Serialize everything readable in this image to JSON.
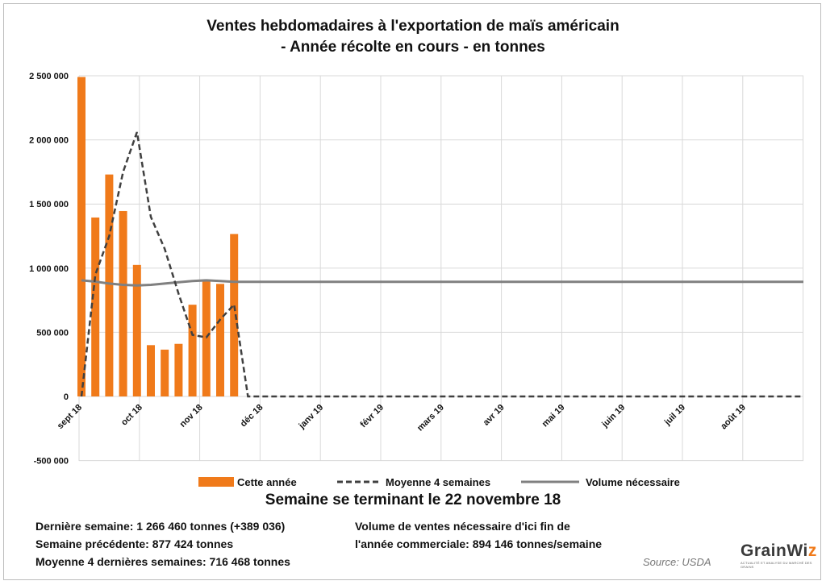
{
  "title_line1": "Ventes hebdomadaires à l'exportation de maïs américain",
  "title_line2": "- Année récolte en cours - en tonnes",
  "subtitle": "Semaine se terminant le 22 novembre 18",
  "info_left": [
    "Dernière semaine: 1 266 460 tonnes (+389 036)",
    "Semaine précédente: 877 424 tonnes",
    "Moyenne 4 dernières semaines: 716 468 tonnes"
  ],
  "info_right": [
    "Volume de ventes nécessaire d'ici fin de",
    "l'année commerciale: 894 146 tonnes/semaine"
  ],
  "source": "Source: USDA",
  "logo": {
    "text_main": "GrainWi",
    "text_accent": "z",
    "tagline": "ACTUALITÉ ET ANALYSE DU MARCHÉ DES GRAINS"
  },
  "colors": {
    "bars": "#f07a1a",
    "avg_line": "#404040",
    "needed_line": "#808080",
    "grid": "#d9d9d9"
  },
  "chart_data": {
    "type": "bar",
    "x_ticks": [
      "sept 18",
      "oct 18",
      "nov 18",
      "déc 18",
      "janv 19",
      "févr 19",
      "mars 19",
      "avr 19",
      "mai 19",
      "juin 19",
      "juil 19",
      "août 19"
    ],
    "y_ticks": [
      "2 500 000",
      "2 000 000",
      "1 500 000",
      "1 000 000",
      "500 000",
      "0",
      "-500 000"
    ],
    "ylim": [
      -500000,
      2500000
    ],
    "grid": true,
    "legend_position": "bottom",
    "series": [
      {
        "name": "Cette année",
        "type": "bar",
        "values": [
          2490000,
          1395000,
          1730000,
          1445000,
          1025000,
          400000,
          365000,
          410000,
          715000,
          910000,
          877424,
          1266460
        ]
      },
      {
        "name": "Moyenne 4 semaines",
        "type": "line",
        "style": "dashed",
        "values": [
          0,
          950000,
          1250000,
          1750000,
          2060000,
          1400000,
          1150000,
          800000,
          480000,
          460000,
          600000,
          716468,
          0,
          0,
          0,
          0,
          0,
          0,
          0,
          0,
          0,
          0,
          0,
          0,
          0,
          0,
          0,
          0,
          0,
          0,
          0,
          0,
          0,
          0,
          0,
          0,
          0,
          0,
          0,
          0,
          0,
          0,
          0,
          0,
          0,
          0,
          0,
          0,
          0,
          0,
          0,
          0,
          0
        ]
      },
      {
        "name": "Volume nécessaire",
        "type": "line",
        "style": "solid",
        "values": [
          905000,
          895000,
          880000,
          870000,
          865000,
          870000,
          880000,
          890000,
          900000,
          905000,
          900000,
          894146,
          894146,
          894146,
          894146,
          894146,
          894146,
          894146,
          894146,
          894146,
          894146,
          894146,
          894146,
          894146,
          894146,
          894146,
          894146,
          894146,
          894146,
          894146,
          894146,
          894146,
          894146,
          894146,
          894146,
          894146,
          894146,
          894146,
          894146,
          894146,
          894146,
          894146,
          894146,
          894146,
          894146,
          894146,
          894146,
          894146,
          894146,
          894146,
          894146,
          894146,
          894146
        ]
      }
    ]
  }
}
